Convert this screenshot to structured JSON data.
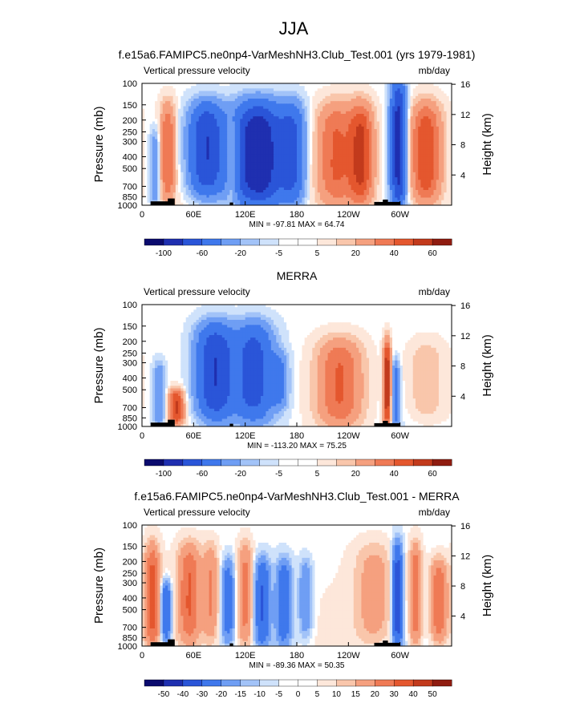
{
  "page": {
    "main_title": "JJA"
  },
  "colors": {
    "negative": [
      "#0b0b6e",
      "#1f2fb0",
      "#2a55d8",
      "#3f78ec",
      "#6f9ef4",
      "#a2c3f8",
      "#cfe2fb"
    ],
    "positive": [
      "#fde7da",
      "#f9c6ab",
      "#f5a07f",
      "#ef7a55",
      "#e4572e",
      "#c23a1c",
      "#8f1c10"
    ],
    "neutral": "#ffffff",
    "terrain": "#000000"
  },
  "chart_data": [
    {
      "type": "heatmap",
      "title": "f.e15a6.FAMIPC5.ne0np4-VarMeshNH3.Club_Test.001 (yrs 1979-1981)",
      "left_string": "Vertical pressure velocity",
      "right_string": "mb/day",
      "ylabel": "Pressure (mb)",
      "ylabel_right": "Height (km)",
      "x_ticks": [
        "0",
        "60E",
        "120E",
        "180",
        "120W",
        "60W"
      ],
      "y_ticks": [
        "100",
        "150",
        "200",
        "250",
        "300",
        "400",
        "500",
        "700",
        "850",
        "1000"
      ],
      "height_ticks": [
        "4",
        "8",
        "12",
        "16"
      ],
      "xlim": [
        0,
        360
      ],
      "ylim": [
        1000,
        100
      ],
      "stats_text": "MIN = -97.81  MAX = 64.74",
      "min": -97.81,
      "max": 64.74,
      "colorbar_labels": [
        "-100",
        "-60",
        "-20",
        "-5",
        "5",
        "20",
        "40",
        "60"
      ],
      "features": [
        {
          "lon": 15,
          "p_top": 250,
          "p_bot": 1000,
          "value": -20,
          "width": 8
        },
        {
          "lon": 30,
          "p_top": 150,
          "p_bot": 900,
          "value": 30,
          "width": 12
        },
        {
          "lon": 75,
          "p_top": 150,
          "p_bot": 800,
          "value": -60,
          "width": 28
        },
        {
          "lon": 105,
          "p_top": 200,
          "p_bot": 850,
          "value": 20,
          "width": 10
        },
        {
          "lon": 135,
          "p_top": 150,
          "p_bot": 950,
          "value": -80,
          "width": 40
        },
        {
          "lon": 175,
          "p_top": 150,
          "p_bot": 900,
          "value": -40,
          "width": 20
        },
        {
          "lon": 225,
          "p_top": 150,
          "p_bot": 950,
          "value": 30,
          "width": 30
        },
        {
          "lon": 255,
          "p_top": 150,
          "p_bot": 950,
          "value": 40,
          "width": 20
        },
        {
          "lon": 298,
          "p_top": 100,
          "p_bot": 1000,
          "value": -70,
          "width": 12
        },
        {
          "lon": 330,
          "p_top": 150,
          "p_bot": 950,
          "value": 40,
          "width": 25
        }
      ]
    },
    {
      "type": "heatmap",
      "title": "MERRA",
      "left_string": "Vertical pressure velocity",
      "right_string": "mb/day",
      "ylabel": "Pressure (mb)",
      "ylabel_right": "Height (km)",
      "x_ticks": [
        "0",
        "60E",
        "120E",
        "180",
        "120W",
        "60W"
      ],
      "y_ticks": [
        "100",
        "150",
        "200",
        "250",
        "300",
        "400",
        "500",
        "700",
        "850",
        "1000"
      ],
      "height_ticks": [
        "4",
        "8",
        "12",
        "16"
      ],
      "xlim": [
        0,
        360
      ],
      "ylim": [
        1000,
        100
      ],
      "stats_text": "MIN = -113.20  MAX =  75.25",
      "min": -113.2,
      "max": 75.25,
      "colorbar_labels": [
        "-100",
        "-60",
        "-20",
        "-5",
        "5",
        "20",
        "40",
        "60"
      ],
      "features": [
        {
          "lon": 20,
          "p_top": 300,
          "p_bot": 1000,
          "value": -20,
          "width": 10
        },
        {
          "lon": 40,
          "p_top": 500,
          "p_bot": 950,
          "value": 40,
          "width": 12
        },
        {
          "lon": 85,
          "p_top": 150,
          "p_bot": 850,
          "value": -60,
          "width": 30
        },
        {
          "lon": 130,
          "p_top": 150,
          "p_bot": 850,
          "value": -50,
          "width": 30
        },
        {
          "lon": 160,
          "p_top": 250,
          "p_bot": 700,
          "value": -20,
          "width": 14
        },
        {
          "lon": 230,
          "p_top": 200,
          "p_bot": 950,
          "value": 30,
          "width": 35
        },
        {
          "lon": 285,
          "p_top": 200,
          "p_bot": 1000,
          "value": 50,
          "width": 6
        },
        {
          "lon": 295,
          "p_top": 300,
          "p_bot": 1000,
          "value": -30,
          "width": 6
        },
        {
          "lon": 330,
          "p_top": 200,
          "p_bot": 900,
          "value": 10,
          "width": 30
        }
      ]
    },
    {
      "type": "heatmap",
      "title": "f.e15a6.FAMIPC5.ne0np4-VarMeshNH3.Club_Test.001 - MERRA",
      "left_string": "Vertical pressure velocity",
      "right_string": "mb/day",
      "ylabel": "Pressure (mb)",
      "ylabel_right": "Height (km)",
      "x_ticks": [
        "0",
        "60E",
        "120E",
        "180",
        "120W",
        "60W"
      ],
      "y_ticks": [
        "100",
        "150",
        "200",
        "250",
        "300",
        "400",
        "500",
        "700",
        "850",
        "1000"
      ],
      "height_ticks": [
        "4",
        "8",
        "12",
        "16"
      ],
      "xlim": [
        0,
        360
      ],
      "ylim": [
        1000,
        100
      ],
      "stats_text": "MIN = -89.36  MAX =  50.35",
      "min": -89.36,
      "max": 50.35,
      "colorbar_labels": [
        "-50",
        "-40",
        "-30",
        "-20",
        "-15",
        "-10",
        "-5",
        "0",
        "5",
        "10",
        "15",
        "20",
        "30",
        "40",
        "50"
      ],
      "features": [
        {
          "lon": 12,
          "p_top": 150,
          "p_bot": 1000,
          "value": 35,
          "width": 12
        },
        {
          "lon": 28,
          "p_top": 300,
          "p_bot": 900,
          "value": -40,
          "width": 8
        },
        {
          "lon": 55,
          "p_top": 150,
          "p_bot": 900,
          "value": 30,
          "width": 18
        },
        {
          "lon": 80,
          "p_top": 150,
          "p_bot": 850,
          "value": 20,
          "width": 12
        },
        {
          "lon": 100,
          "p_top": 200,
          "p_bot": 900,
          "value": -30,
          "width": 10
        },
        {
          "lon": 120,
          "p_top": 150,
          "p_bot": 950,
          "value": 25,
          "width": 12
        },
        {
          "lon": 140,
          "p_top": 200,
          "p_bot": 950,
          "value": -40,
          "width": 12
        },
        {
          "lon": 165,
          "p_top": 200,
          "p_bot": 950,
          "value": -35,
          "width": 12
        },
        {
          "lon": 190,
          "p_top": 200,
          "p_bot": 800,
          "value": -20,
          "width": 10
        },
        {
          "lon": 270,
          "p_top": 150,
          "p_bot": 900,
          "value": 15,
          "width": 30
        },
        {
          "lon": 297,
          "p_top": 150,
          "p_bot": 1000,
          "value": -55,
          "width": 8
        },
        {
          "lon": 318,
          "p_top": 150,
          "p_bot": 950,
          "value": 30,
          "width": 10
        },
        {
          "lon": 345,
          "p_top": 200,
          "p_bot": 900,
          "value": 30,
          "width": 14
        }
      ]
    }
  ]
}
